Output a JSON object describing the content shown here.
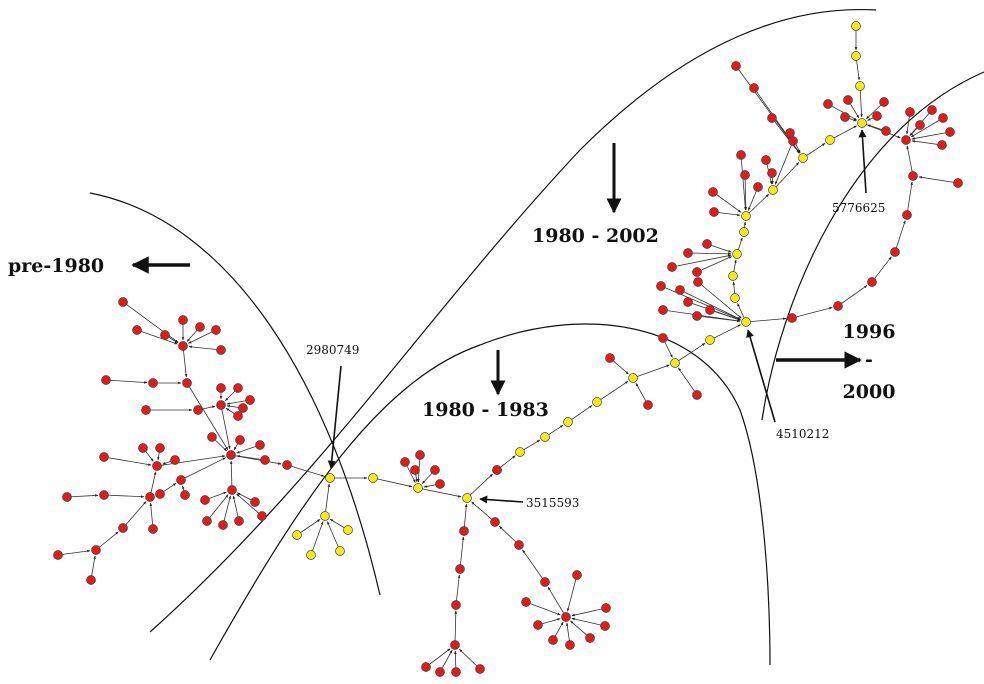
{
  "regions": {
    "pre_1980": "pre-1980",
    "r_1980_2002": "1980 - 2002",
    "r_1980_1983": "1980 - 1983",
    "r_1996_line1": "1996",
    "r_1996_line2": "-",
    "r_1996_line3": "2000"
  },
  "patents": {
    "p1": "2980749",
    "p2": "3515593",
    "p3": "4510212",
    "p4": "5776625"
  },
  "colors": {
    "yellow_node": "#f2ea1a",
    "red_node": "#e01b1b",
    "edge": "#333333",
    "boundary": "#111111"
  }
}
